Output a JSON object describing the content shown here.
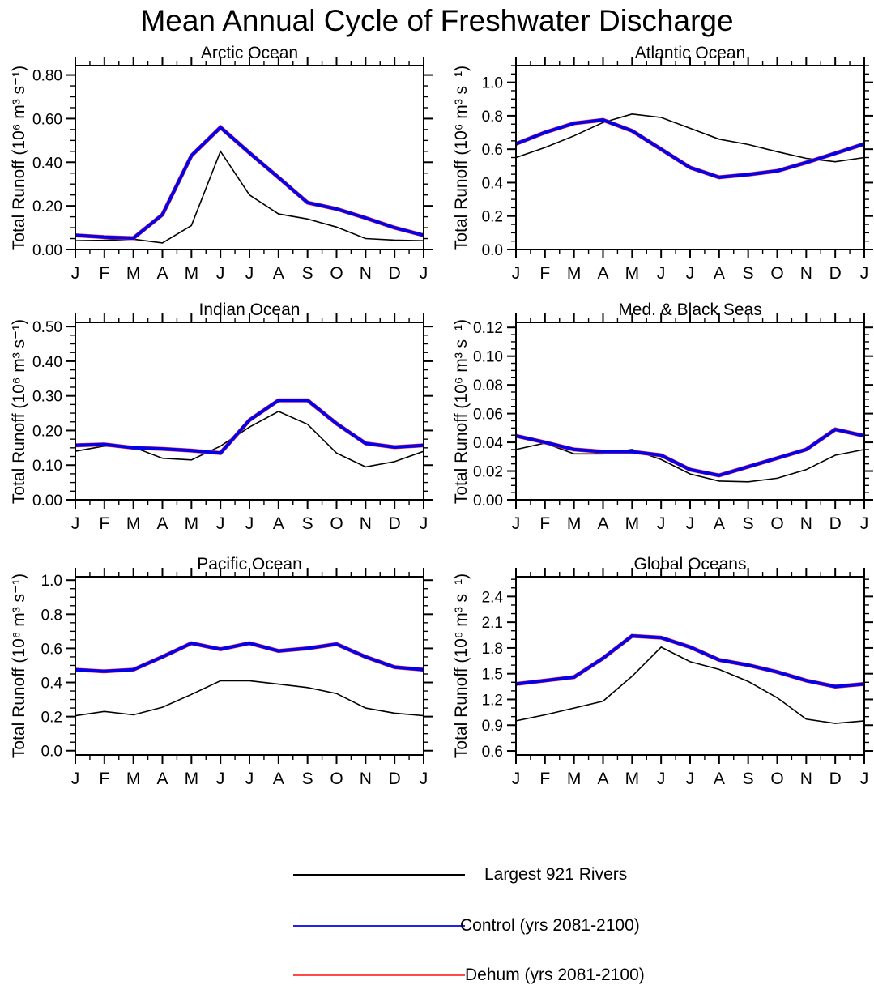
{
  "title": "Mean Annual Cycle of Freshwater Discharge",
  "axis": {
    "ylabel": "Total Runoff (10⁶ m³ s⁻¹)",
    "months": [
      "J",
      "F",
      "M",
      "A",
      "M",
      "J",
      "J",
      "A",
      "S",
      "O",
      "N",
      "D",
      "J"
    ]
  },
  "colors": {
    "rivers": "#000000",
    "control": "#0000ee",
    "dehum": "#ff3a3a",
    "frame": "#000000"
  },
  "legend": {
    "items": [
      {
        "label": "Largest 921 Rivers",
        "color": "#000000",
        "thickness": 1.6
      },
      {
        "label": "Control (yrs 2081-2100)",
        "color": "#2222ee",
        "thickness": 3
      },
      {
        "label": "Dehum (yrs 2081-2100)",
        "color": "#ff4a4a",
        "thickness": 2.2
      }
    ]
  },
  "chart_data": [
    {
      "type": "line",
      "title": "Arctic Ocean",
      "categories": [
        "J",
        "F",
        "M",
        "A",
        "M",
        "J",
        "J",
        "A",
        "S",
        "O",
        "N",
        "D",
        "J"
      ],
      "ylabel": "Total Runoff (10⁶ m³ s⁻¹)",
      "ylim": [
        0,
        0.843
      ],
      "yticks": {
        "start": 0,
        "end": 0.8,
        "step": 0.2,
        "decimals": 2,
        "minor_divisions": 4
      },
      "grid": false,
      "series": [
        {
          "name": "Largest 921 Rivers",
          "color": "#000000",
          "width": 1.6,
          "values": [
            0.04,
            0.042,
            0.047,
            0.03,
            0.11,
            0.45,
            0.25,
            0.163,
            0.14,
            0.103,
            0.05,
            0.043,
            0.04
          ]
        },
        {
          "name": "Dehum (yrs 2081-2100)",
          "color": "#ff3a3a",
          "width": 5,
          "values": [
            0.065,
            0.057,
            0.052,
            0.16,
            0.43,
            0.56,
            0.443,
            0.33,
            0.215,
            0.186,
            0.145,
            0.1,
            0.065
          ]
        },
        {
          "name": "Control (yrs 2081-2100)",
          "color": "#0000ee",
          "width": 4,
          "values": [
            0.065,
            0.057,
            0.052,
            0.16,
            0.43,
            0.56,
            0.443,
            0.33,
            0.215,
            0.186,
            0.145,
            0.1,
            0.065
          ]
        }
      ]
    },
    {
      "type": "line",
      "title": "Atlantic Ocean",
      "categories": [
        "J",
        "F",
        "M",
        "A",
        "M",
        "J",
        "J",
        "A",
        "S",
        "O",
        "N",
        "D",
        "J"
      ],
      "ylabel": "Total Runoff (10⁶ m³ s⁻¹)",
      "ylim": [
        0,
        1.1
      ],
      "yticks": {
        "start": 0,
        "end": 1.0,
        "step": 0.2,
        "decimals": 1,
        "minor_divisions": 4
      },
      "grid": false,
      "series": [
        {
          "name": "Largest 921 Rivers",
          "color": "#000000",
          "width": 1.6,
          "values": [
            0.55,
            0.61,
            0.68,
            0.76,
            0.81,
            0.79,
            0.725,
            0.66,
            0.628,
            0.585,
            0.545,
            0.525,
            0.55
          ]
        },
        {
          "name": "Dehum (yrs 2081-2100)",
          "color": "#ff3a3a",
          "width": 5,
          "values": [
            0.632,
            0.7,
            0.755,
            0.775,
            0.71,
            0.6,
            0.49,
            0.432,
            0.448,
            0.47,
            0.52,
            0.575,
            0.632
          ]
        },
        {
          "name": "Control (yrs 2081-2100)",
          "color": "#0000ee",
          "width": 4,
          "values": [
            0.632,
            0.7,
            0.755,
            0.775,
            0.71,
            0.6,
            0.49,
            0.432,
            0.448,
            0.47,
            0.52,
            0.575,
            0.632
          ]
        }
      ]
    },
    {
      "type": "line",
      "title": "Indian Ocean",
      "categories": [
        "J",
        "F",
        "M",
        "A",
        "M",
        "J",
        "J",
        "A",
        "S",
        "O",
        "N",
        "D",
        "J"
      ],
      "ylabel": "Total Runoff (10⁶ m³ s⁻¹)",
      "ylim": [
        0,
        0.512
      ],
      "yticks": {
        "start": 0,
        "end": 0.5,
        "step": 0.1,
        "decimals": 2,
        "minor_divisions": 4
      },
      "grid": false,
      "series": [
        {
          "name": "Largest 921 Rivers",
          "color": "#000000",
          "width": 1.6,
          "values": [
            0.14,
            0.155,
            0.152,
            0.12,
            0.115,
            0.155,
            0.21,
            0.255,
            0.218,
            0.135,
            0.095,
            0.11,
            0.14
          ]
        },
        {
          "name": "Dehum (yrs 2081-2100)",
          "color": "#ff3a3a",
          "width": 5,
          "values": [
            0.157,
            0.16,
            0.15,
            0.147,
            0.142,
            0.135,
            0.23,
            0.287,
            0.287,
            0.22,
            0.163,
            0.152,
            0.157
          ]
        },
        {
          "name": "Control (yrs 2081-2100)",
          "color": "#0000ee",
          "width": 4,
          "values": [
            0.157,
            0.16,
            0.15,
            0.147,
            0.142,
            0.135,
            0.23,
            0.287,
            0.287,
            0.22,
            0.163,
            0.152,
            0.157
          ]
        }
      ]
    },
    {
      "type": "line",
      "title": "Med. & Black Seas",
      "categories": [
        "J",
        "F",
        "M",
        "A",
        "M",
        "J",
        "J",
        "A",
        "S",
        "O",
        "N",
        "D",
        "J"
      ],
      "ylabel": "Total Runoff (10⁶ m³ s⁻¹)",
      "ylim": [
        0,
        0.1235
      ],
      "yticks": {
        "start": 0,
        "end": 0.12,
        "step": 0.02,
        "decimals": 2,
        "minor_divisions": 4
      },
      "grid": false,
      "series": [
        {
          "name": "Largest 921 Rivers",
          "color": "#000000",
          "width": 1.6,
          "values": [
            0.035,
            0.0395,
            0.032,
            0.032,
            0.035,
            0.028,
            0.018,
            0.013,
            0.0125,
            0.015,
            0.021,
            0.031,
            0.035
          ]
        },
        {
          "name": "Dehum (yrs 2081-2100)",
          "color": "#ff3a3a",
          "width": 5,
          "values": [
            0.0445,
            0.04,
            0.035,
            0.0335,
            0.0335,
            0.031,
            0.021,
            0.017,
            0.023,
            0.029,
            0.035,
            0.049,
            0.0445
          ]
        },
        {
          "name": "Control (yrs 2081-2100)",
          "color": "#0000ee",
          "width": 4,
          "values": [
            0.0445,
            0.04,
            0.035,
            0.0335,
            0.0335,
            0.031,
            0.021,
            0.017,
            0.023,
            0.029,
            0.035,
            0.049,
            0.0445
          ]
        }
      ]
    },
    {
      "type": "line",
      "title": "Pacific Ocean",
      "categories": [
        "J",
        "F",
        "M",
        "A",
        "M",
        "J",
        "J",
        "A",
        "S",
        "O",
        "N",
        "D",
        "J"
      ],
      "ylabel": "Total Runoff (10⁶ m³ s⁻¹)",
      "ylim": [
        -0.025,
        1.02
      ],
      "yticks": {
        "start": 0,
        "end": 1.0,
        "step": 0.2,
        "decimals": 1,
        "minor_divisions": 4
      },
      "grid": false,
      "series": [
        {
          "name": "Largest 921 Rivers",
          "color": "#000000",
          "width": 1.6,
          "values": [
            0.205,
            0.23,
            0.21,
            0.255,
            0.33,
            0.41,
            0.41,
            0.39,
            0.37,
            0.335,
            0.25,
            0.22,
            0.205
          ]
        },
        {
          "name": "Dehum (yrs 2081-2100)",
          "color": "#ff3a3a",
          "width": 5,
          "values": [
            0.475,
            0.465,
            0.475,
            0.55,
            0.63,
            0.595,
            0.63,
            0.585,
            0.6,
            0.625,
            0.55,
            0.49,
            0.475
          ]
        },
        {
          "name": "Control (yrs 2081-2100)",
          "color": "#0000ee",
          "width": 4,
          "values": [
            0.475,
            0.465,
            0.475,
            0.55,
            0.63,
            0.595,
            0.63,
            0.585,
            0.6,
            0.625,
            0.55,
            0.49,
            0.475
          ]
        }
      ]
    },
    {
      "type": "line",
      "title": "Global Oceans",
      "categories": [
        "J",
        "F",
        "M",
        "A",
        "M",
        "J",
        "J",
        "A",
        "S",
        "O",
        "N",
        "D",
        "J"
      ],
      "ylabel": "Total Runoff (10⁶ m³ s⁻¹)",
      "ylim": [
        0.553,
        2.63
      ],
      "yticks": {
        "start": 0.6,
        "end": 2.4,
        "step": 0.3,
        "decimals": 1,
        "minor_divisions": 3
      },
      "grid": false,
      "series": [
        {
          "name": "Largest 921 Rivers",
          "color": "#000000",
          "width": 1.6,
          "values": [
            0.95,
            1.02,
            1.1,
            1.18,
            1.47,
            1.81,
            1.64,
            1.55,
            1.41,
            1.22,
            0.97,
            0.92,
            0.95
          ]
        },
        {
          "name": "Dehum (yrs 2081-2100)",
          "color": "#ff3a3a",
          "width": 5,
          "values": [
            1.38,
            1.42,
            1.46,
            1.68,
            1.94,
            1.92,
            1.81,
            1.66,
            1.6,
            1.52,
            1.42,
            1.35,
            1.38
          ]
        },
        {
          "name": "Control (yrs 2081-2100)",
          "color": "#0000ee",
          "width": 4,
          "values": [
            1.38,
            1.42,
            1.46,
            1.68,
            1.94,
            1.92,
            1.81,
            1.66,
            1.6,
            1.52,
            1.42,
            1.35,
            1.38
          ]
        }
      ]
    }
  ]
}
